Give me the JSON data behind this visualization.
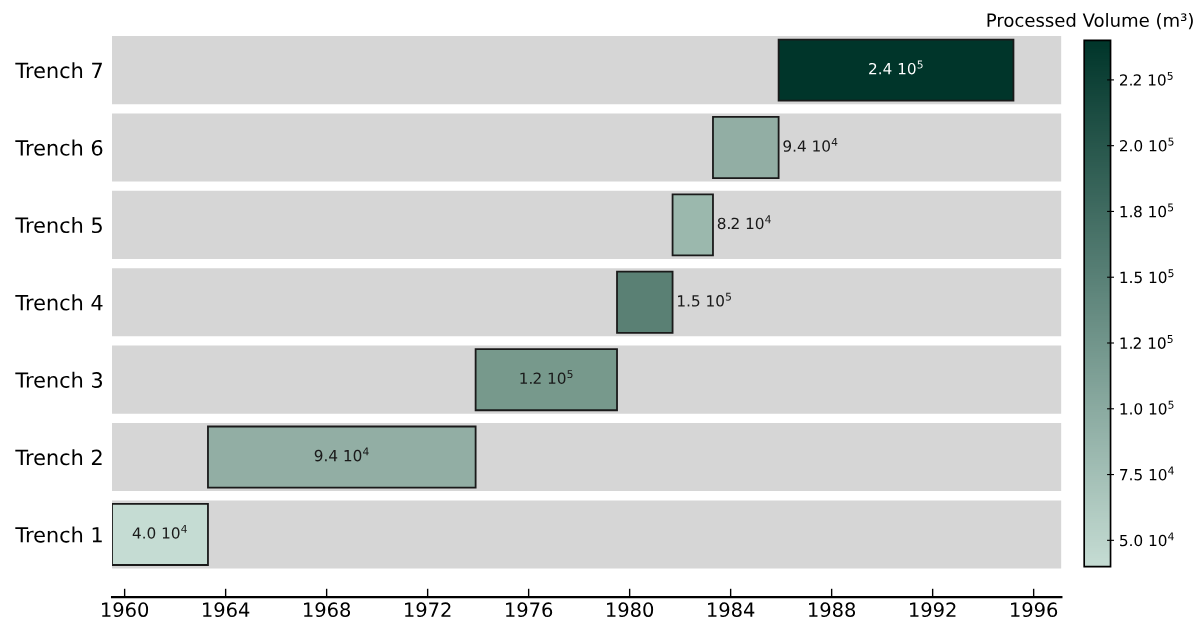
{
  "chart_data": {
    "type": "bar",
    "orientation": "horizontal",
    "clabel": "Processed Volume (m³)",
    "categories": [
      "Trench 7",
      "Trench 6",
      "Trench 5",
      "Trench 4",
      "Trench 3",
      "Trench 2",
      "Trench 1"
    ],
    "base": [
      1985.9,
      1983.3,
      1981.7,
      1979.5,
      1973.9,
      1963.3,
      1959.5
    ],
    "values": [
      9.3,
      2.6,
      1.6,
      2.2,
      5.6,
      10.6,
      3.8
    ],
    "cvalues": [
      240000,
      94000,
      82000,
      150000,
      120000,
      94000,
      40000
    ],
    "annotations": [
      {
        "text": "2.4 10$^{5}$",
        "x": 1990.55,
        "y": "Trench 7"
      },
      {
        "text": "9.4 10$^{4}$",
        "x": 1985.9,
        "y": "Trench 6"
      },
      {
        "text": "8.2 10$^{4}$",
        "x": 1983.3,
        "y": "Trench 5"
      },
      {
        "text": "1.5 10$^{5}$",
        "x": 1981.7,
        "y": "Trench 4"
      },
      {
        "text": "1.2 10$^{5}$",
        "x": 1976.7,
        "y": "Trench 3"
      },
      {
        "text": "9.4 10$^{4}$",
        "x": 1968.6,
        "y": "Trench 2"
      },
      {
        "text": "4.0 10$^{4}$",
        "x": 1961.4,
        "y": "Trench 1"
      }
    ],
    "colors": [
      "#00352a",
      "#92aea4",
      "#9bb8ad",
      "#5a8074",
      "#77998c",
      "#92aea4",
      "#c5dcd3"
    ],
    "clim": [
      40000,
      240000
    ],
    "cticks": [
      {
        "value": 50000,
        "label": "5.0 10$^{4}$"
      },
      {
        "value": 75000,
        "label": "7.5 10$^{4}$"
      },
      {
        "value": 100000,
        "label": "1.0 10$^{5}$"
      },
      {
        "value": 125000,
        "label": "1.2 10$^{5}$"
      },
      {
        "value": 150000,
        "label": "1.5 10$^{5}$"
      },
      {
        "value": 175000,
        "label": "1.8 10$^{5}$"
      },
      {
        "value": 200000,
        "label": "2.0 10$^{5}$"
      },
      {
        "value": 225000,
        "label": "2.2 10$^{5}$"
      }
    ],
    "xlim": [
      1959.5,
      1997.1
    ],
    "xticks": [
      1960,
      1964,
      1968,
      1972,
      1976,
      1980,
      1984,
      1988,
      1992,
      1996
    ],
    "grid": false
  }
}
